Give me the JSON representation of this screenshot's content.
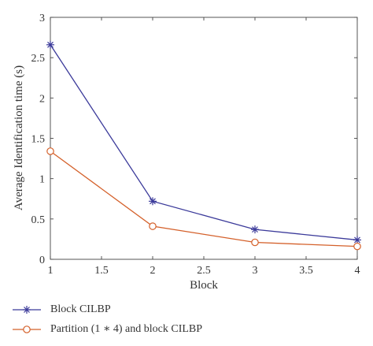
{
  "chart_data": {
    "type": "line",
    "xlabel": "Block",
    "ylabel": "Average Identification time (s)",
    "x": [
      1,
      2,
      3,
      4
    ],
    "xlim": [
      1,
      4
    ],
    "ylim": [
      0,
      3
    ],
    "xticks": [
      "1",
      "1.5",
      "2",
      "2.5",
      "3",
      "3.5",
      "4"
    ],
    "yticks": [
      "0",
      "0.5",
      "1",
      "1.5",
      "2",
      "2.5",
      "3"
    ],
    "grid": false,
    "legend_position": "below",
    "series": [
      {
        "name": "Block CILBP",
        "values": [
          2.66,
          0.72,
          0.37,
          0.24
        ],
        "color": "#3b3a9a",
        "marker": "star"
      },
      {
        "name": "Partition (1 ∗ 4) and block CILBP",
        "values": [
          1.34,
          0.41,
          0.21,
          0.16
        ],
        "color": "#d4602a",
        "marker": "circle"
      }
    ]
  }
}
